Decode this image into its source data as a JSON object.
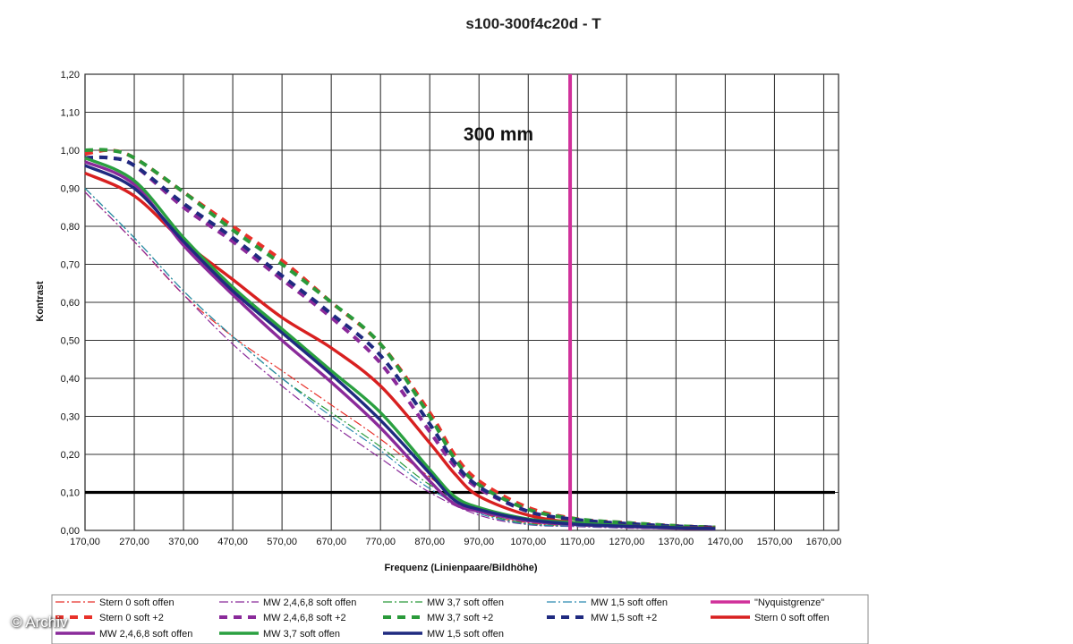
{
  "watermark": "© Archiv",
  "chart_data": {
    "type": "line",
    "title": "s100-300f4c20d - T",
    "annotation": "300 mm",
    "xlabel": "Frequenz (Linienpaare/Bildhöhe)",
    "ylabel": "Kontrast",
    "xlim": [
      170,
      1700
    ],
    "ylim": [
      0,
      1.2
    ],
    "x_ticks": [
      "170,00",
      "270,00",
      "370,00",
      "470,00",
      "570,00",
      "670,00",
      "770,00",
      "870,00",
      "970,00",
      "1070,00",
      "1170,00",
      "1270,00",
      "1370,00",
      "1470,00",
      "1570,00",
      "1670,00"
    ],
    "y_ticks": [
      "0,00",
      "0,10",
      "0,20",
      "0,30",
      "0,40",
      "0,50",
      "0,60",
      "0,70",
      "0,80",
      "0,90",
      "1,00",
      "1,10",
      "1,20"
    ],
    "grid": true,
    "legend_position": "bottom",
    "reference_line_y": 0.1,
    "nyquist_x": 1155,
    "series": [
      {
        "name": "Stern 0 soft offen",
        "color": "#e8312a",
        "style": "dashdot-thin",
        "x": [
          170,
          270,
          370,
          470,
          570,
          670,
          770,
          870,
          970,
          1070,
          1170,
          1270,
          1370,
          1450
        ],
        "y": [
          0.89,
          0.76,
          0.62,
          0.51,
          0.42,
          0.33,
          0.24,
          0.14,
          0.05,
          0.02,
          0.012,
          0.008,
          0.005,
          0.004
        ]
      },
      {
        "name": "MW 2,4,6,8 soft offen",
        "color": "#8a2a9a",
        "style": "dashdot-thin",
        "x": [
          170,
          270,
          370,
          470,
          570,
          670,
          770,
          870,
          970,
          1070,
          1170,
          1270,
          1370,
          1450
        ],
        "y": [
          0.89,
          0.76,
          0.62,
          0.49,
          0.38,
          0.28,
          0.19,
          0.1,
          0.04,
          0.015,
          0.01,
          0.006,
          0.004,
          0.003
        ]
      },
      {
        "name": "MW 3,7 soft offen",
        "color": "#2a9a3a",
        "style": "dashdot-thin",
        "x": [
          170,
          270,
          370,
          470,
          570,
          670,
          770,
          870,
          970,
          1070,
          1170,
          1270,
          1370,
          1450
        ],
        "y": [
          0.9,
          0.77,
          0.63,
          0.51,
          0.4,
          0.31,
          0.22,
          0.12,
          0.05,
          0.018,
          0.012,
          0.008,
          0.005,
          0.004
        ]
      },
      {
        "name": "MW 1,5 soft offen",
        "color": "#2a8ab0",
        "style": "dashdot-thin",
        "x": [
          170,
          270,
          370,
          470,
          570,
          670,
          770,
          870,
          970,
          1070,
          1170,
          1270,
          1370,
          1450
        ],
        "y": [
          0.9,
          0.77,
          0.63,
          0.51,
          0.4,
          0.3,
          0.21,
          0.11,
          0.045,
          0.016,
          0.011,
          0.007,
          0.005,
          0.004
        ]
      },
      {
        "name": "\"Nyquistgrenze\"",
        "color": "#d0309a",
        "style": "vertical"
      },
      {
        "name": "Stern 0 soft +2",
        "color": "#e8312a",
        "style": "dash-thick",
        "x": [
          170,
          220,
          270,
          370,
          470,
          570,
          670,
          770,
          870,
          920,
          970,
          1070,
          1170,
          1270,
          1370,
          1450
        ],
        "y": [
          0.99,
          1.0,
          0.98,
          0.89,
          0.8,
          0.71,
          0.6,
          0.49,
          0.31,
          0.2,
          0.13,
          0.06,
          0.03,
          0.02,
          0.012,
          0.008
        ]
      },
      {
        "name": "MW 2,4,6,8 soft +2",
        "color": "#8a2a9a",
        "style": "dash-thick",
        "x": [
          170,
          220,
          270,
          370,
          470,
          570,
          670,
          770,
          870,
          920,
          970,
          1070,
          1170,
          1270,
          1370,
          1450
        ],
        "y": [
          0.98,
          0.98,
          0.96,
          0.85,
          0.76,
          0.66,
          0.56,
          0.44,
          0.26,
          0.17,
          0.11,
          0.05,
          0.025,
          0.015,
          0.01,
          0.007
        ]
      },
      {
        "name": "MW 3,7 soft +2",
        "color": "#2a9a3a",
        "style": "dash-thick",
        "x": [
          170,
          220,
          270,
          370,
          470,
          570,
          670,
          770,
          870,
          920,
          970,
          1070,
          1170,
          1270,
          1370,
          1450
        ],
        "y": [
          1.0,
          1.0,
          0.98,
          0.89,
          0.79,
          0.7,
          0.6,
          0.49,
          0.3,
          0.19,
          0.12,
          0.055,
          0.03,
          0.02,
          0.012,
          0.008
        ]
      },
      {
        "name": "MW 1,5 soft +2",
        "color": "#1f2a80",
        "style": "dash-thick",
        "x": [
          170,
          220,
          270,
          370,
          470,
          570,
          670,
          770,
          870,
          920,
          970,
          1070,
          1170,
          1270,
          1370,
          1450
        ],
        "y": [
          0.98,
          0.98,
          0.96,
          0.86,
          0.77,
          0.67,
          0.57,
          0.46,
          0.28,
          0.18,
          0.115,
          0.05,
          0.028,
          0.018,
          0.011,
          0.008
        ]
      },
      {
        "name": "Stern 0 soft offen",
        "color": "#d82020",
        "style": "solid-thick",
        "x": [
          170,
          270,
          370,
          470,
          570,
          670,
          770,
          870,
          920,
          970,
          1070,
          1170,
          1270,
          1370,
          1450
        ],
        "y": [
          0.94,
          0.88,
          0.76,
          0.66,
          0.56,
          0.48,
          0.38,
          0.23,
          0.15,
          0.09,
          0.04,
          0.02,
          0.012,
          0.008,
          0.006
        ]
      },
      {
        "name": "MW 2,4,6,8 soft offen",
        "color": "#8a2a9a",
        "style": "solid-thick",
        "x": [
          170,
          270,
          370,
          470,
          570,
          670,
          770,
          870,
          920,
          970,
          1070,
          1170,
          1270,
          1370,
          1450
        ],
        "y": [
          0.97,
          0.91,
          0.75,
          0.62,
          0.5,
          0.39,
          0.27,
          0.13,
          0.07,
          0.05,
          0.025,
          0.015,
          0.01,
          0.006,
          0.004
        ]
      },
      {
        "name": "MW 3,7 soft offen",
        "color": "#2aa040",
        "style": "solid-thick",
        "x": [
          170,
          270,
          370,
          470,
          570,
          670,
          770,
          870,
          920,
          970,
          1070,
          1170,
          1270,
          1370,
          1450
        ],
        "y": [
          0.98,
          0.92,
          0.77,
          0.64,
          0.53,
          0.42,
          0.31,
          0.16,
          0.09,
          0.06,
          0.03,
          0.02,
          0.012,
          0.008,
          0.005
        ]
      },
      {
        "name": "MW 1,5 soft offen",
        "color": "#1f2a80",
        "style": "solid-thick",
        "x": [
          170,
          270,
          370,
          470,
          570,
          670,
          770,
          870,
          920,
          970,
          1070,
          1170,
          1270,
          1370,
          1450
        ],
        "y": [
          0.96,
          0.9,
          0.76,
          0.63,
          0.52,
          0.41,
          0.29,
          0.15,
          0.08,
          0.055,
          0.028,
          0.016,
          0.011,
          0.007,
          0.005
        ]
      }
    ]
  }
}
